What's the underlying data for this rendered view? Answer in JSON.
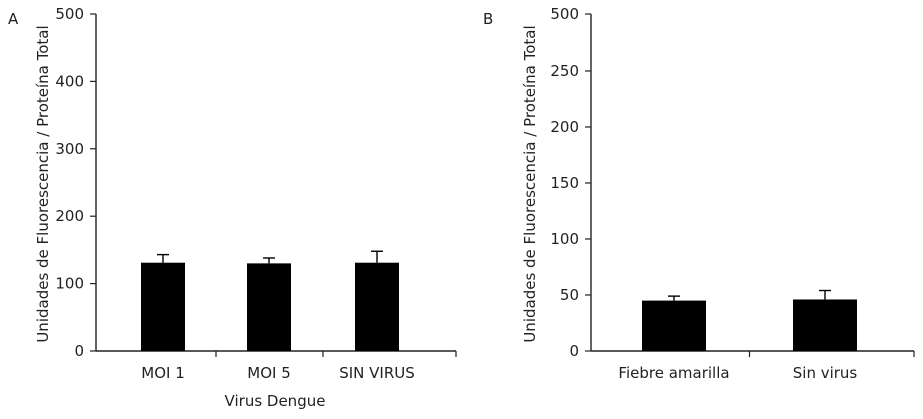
{
  "chart_data": [
    {
      "panel": "A",
      "type": "bar",
      "ylabel": "Unidades de Fluorescencia / Proteína Total",
      "xlabel": "Virus Dengue",
      "ylim": [
        0,
        500
      ],
      "yticks": [
        0,
        100,
        200,
        300,
        400,
        500
      ],
      "categories": [
        "MOI 1",
        "MOI 5",
        "SIN VIRUS"
      ],
      "values": [
        131,
        130,
        131
      ],
      "errors": [
        12,
        8,
        17
      ],
      "bar_color": "#000000",
      "grid": false
    },
    {
      "panel": "B",
      "type": "bar",
      "ylabel": "Unidades de Fluorescencia / Proteína Total",
      "xlabel": "",
      "ylim": [
        0,
        500
      ],
      "yticks": [
        0,
        50,
        100,
        150,
        200,
        250,
        500
      ],
      "y_axis_break": [
        250,
        500
      ],
      "categories": [
        "Fiebre amarilla",
        "Sin virus"
      ],
      "values": [
        45,
        46
      ],
      "errors": [
        4,
        8
      ],
      "bar_color": "#000000",
      "grid": false
    }
  ]
}
